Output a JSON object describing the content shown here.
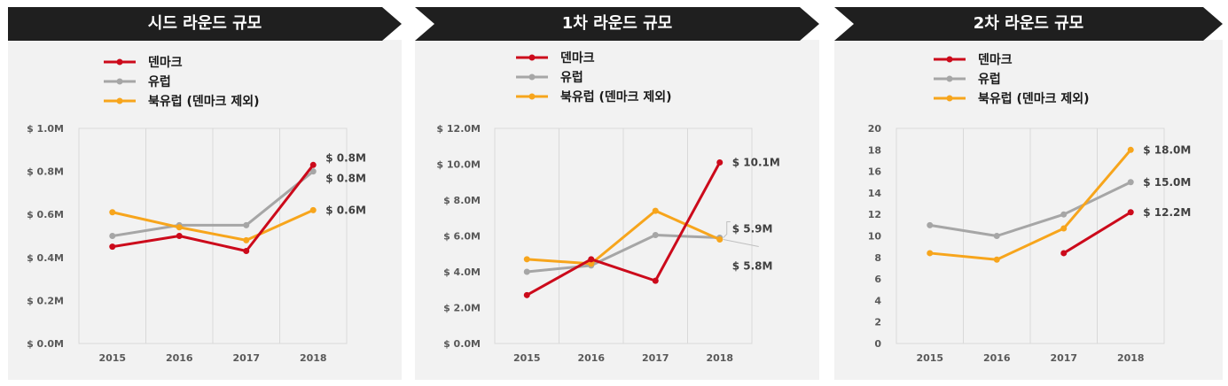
{
  "chart_data": [
    {
      "type": "line",
      "title": "시드 라운드 규모",
      "categories": [
        "2015",
        "2016",
        "2017",
        "2018"
      ],
      "y_tick_labels": [
        "$ 0.0M",
        "$ 0.2M",
        "$ 0.4M",
        "$ 0.6M",
        "$ 0.8M",
        "$ 1.0M"
      ],
      "ylim": [
        0,
        1.0
      ],
      "grid": "vertical",
      "legend": "top",
      "series": [
        {
          "name": "덴마크",
          "color": "#cc0a1b",
          "values": [
            0.45,
            0.5,
            0.43,
            0.83
          ],
          "end_label": "$ 0.8M"
        },
        {
          "name": "유럽",
          "color": "#a6a6a6",
          "values": [
            0.5,
            0.55,
            0.55,
            0.8
          ],
          "end_label": "$ 0.8M"
        },
        {
          "name": "북유럽 (덴마크 제외)",
          "color": "#f7a51c",
          "values": [
            0.61,
            0.54,
            0.48,
            0.62
          ],
          "end_label": "$ 0.6M"
        }
      ]
    },
    {
      "type": "line",
      "title": "1차 라운드 규모",
      "categories": [
        "2015",
        "2016",
        "2017",
        "2018"
      ],
      "y_tick_labels": [
        "$ 0.0M",
        "$ 2.0M",
        "$ 4.0M",
        "$ 6.0M",
        "$ 8.0M",
        "$ 10.0M",
        "$ 12.0M"
      ],
      "ylim": [
        0,
        12.0
      ],
      "grid": "vertical",
      "legend": "top",
      "series": [
        {
          "name": "덴마크",
          "color": "#cc0a1b",
          "values": [
            2.7,
            4.7,
            3.5,
            10.1
          ],
          "end_label": "$ 10.1M"
        },
        {
          "name": "유럽",
          "color": "#a6a6a6",
          "values": [
            4.0,
            4.35,
            6.05,
            5.9
          ],
          "end_label": "$ 5.9M"
        },
        {
          "name": "북유럽 (덴마크 제외)",
          "color": "#f7a51c",
          "values": [
            4.7,
            4.45,
            7.4,
            5.8
          ],
          "end_label": "$ 5.8M"
        }
      ]
    },
    {
      "type": "line",
      "title": "2차 라운드 규모",
      "categories": [
        "2015",
        "2016",
        "2017",
        "2018"
      ],
      "y_tick_labels": [
        "0",
        "2",
        "4",
        "6",
        "8",
        "10",
        "12",
        "14",
        "16",
        "18",
        "20"
      ],
      "ylim": [
        0,
        20
      ],
      "grid": "vertical",
      "legend": "top",
      "series": [
        {
          "name": "덴마크",
          "color": "#cc0a1b",
          "values": [
            null,
            null,
            8.4,
            12.2
          ],
          "end_label": "$ 12.2M"
        },
        {
          "name": "유럽",
          "color": "#a6a6a6",
          "values": [
            11.0,
            10.0,
            12.0,
            15.0
          ],
          "end_label": "$ 15.0M"
        },
        {
          "name": "북유럽 (덴마크 제외)",
          "color": "#f7a51c",
          "values": [
            8.4,
            7.8,
            10.7,
            18.0
          ],
          "end_label": "$ 18.0M"
        }
      ]
    }
  ]
}
